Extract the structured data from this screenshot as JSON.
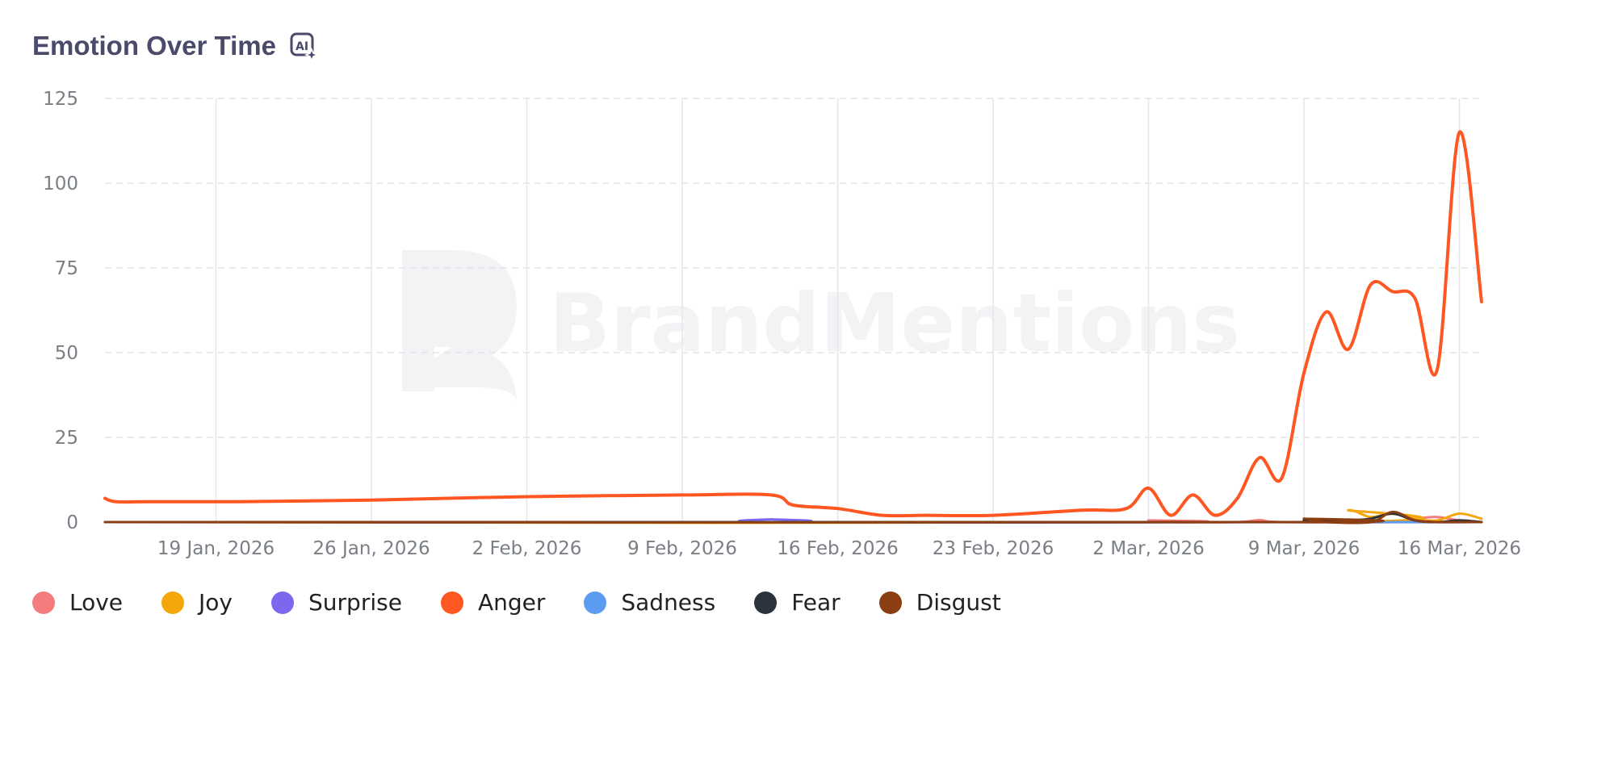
{
  "header": {
    "title": "Emotion Over Time",
    "ai_icon": "ai-sparkle-icon"
  },
  "watermark": {
    "text": "BrandMentions"
  },
  "chart_data": {
    "type": "line",
    "title": "Emotion Over Time",
    "xlabel": "",
    "ylabel": "",
    "ylim": [
      0,
      125
    ],
    "y_ticks": [
      0,
      25,
      50,
      75,
      100,
      125
    ],
    "x_tick_labels": [
      "19 Jan, 2026",
      "26 Jan, 2026",
      "2 Feb, 2026",
      "9 Feb, 2026",
      "16 Feb, 2026",
      "23 Feb, 2026",
      "2 Mar, 2026",
      "9 Mar, 2026",
      "16 Mar, 2026"
    ],
    "x_tick_days": [
      19,
      26,
      33,
      40,
      47,
      54,
      61,
      68,
      75
    ],
    "x_day_range": [
      14,
      76
    ],
    "grid": true,
    "legend_position": "bottom-left",
    "series": [
      {
        "name": "Love",
        "color": "#f47c7c",
        "points": [
          [
            14,
            0
          ],
          [
            60,
            0
          ],
          [
            61,
            0.5
          ],
          [
            62,
            0
          ],
          [
            65,
            0
          ],
          [
            66,
            0.6
          ],
          [
            67,
            0
          ],
          [
            72,
            0
          ],
          [
            73,
            1
          ],
          [
            74,
            1.5
          ],
          [
            75,
            0.5
          ],
          [
            76,
            0
          ]
        ]
      },
      {
        "name": "Joy",
        "color": "#f5a60b",
        "points": [
          [
            14,
            0
          ],
          [
            69,
            0
          ],
          [
            70,
            3.5
          ],
          [
            71,
            1.5
          ],
          [
            72,
            2.5
          ],
          [
            73,
            1
          ],
          [
            74,
            0.5
          ],
          [
            75,
            2.5
          ],
          [
            76,
            1
          ]
        ]
      },
      {
        "name": "Surprise",
        "color": "#7b68ee",
        "points": [
          [
            14,
            0
          ],
          [
            43.5,
            0
          ],
          [
            44,
            0.8
          ],
          [
            44.5,
            0
          ],
          [
            69,
            0
          ],
          [
            69.5,
            0.5
          ],
          [
            70,
            0
          ],
          [
            76,
            0
          ]
        ]
      },
      {
        "name": "Anger",
        "color": "#ff5722",
        "points": [
          [
            14,
            7
          ],
          [
            14.5,
            6
          ],
          [
            16,
            6
          ],
          [
            20,
            6
          ],
          [
            26,
            6.5
          ],
          [
            33,
            7.5
          ],
          [
            40,
            8
          ],
          [
            44,
            8
          ],
          [
            45,
            5
          ],
          [
            47,
            4
          ],
          [
            49,
            2
          ],
          [
            51,
            2
          ],
          [
            54,
            2
          ],
          [
            58,
            3.5
          ],
          [
            60,
            4
          ],
          [
            61,
            10
          ],
          [
            62,
            2
          ],
          [
            63,
            8
          ],
          [
            64,
            2
          ],
          [
            65,
            7
          ],
          [
            66,
            19
          ],
          [
            67,
            13
          ],
          [
            68,
            44
          ],
          [
            69,
            62
          ],
          [
            70,
            51
          ],
          [
            71,
            70
          ],
          [
            72,
            68
          ],
          [
            73,
            66
          ],
          [
            74,
            45
          ],
          [
            75,
            115
          ],
          [
            76,
            65
          ]
        ]
      },
      {
        "name": "Sadness",
        "color": "#5b9bf0",
        "points": [
          [
            14,
            0
          ],
          [
            76,
            0
          ]
        ]
      },
      {
        "name": "Fear",
        "color": "#2b333c",
        "points": [
          [
            14,
            0
          ],
          [
            67,
            0
          ],
          [
            68,
            0.5
          ],
          [
            69,
            0
          ],
          [
            70,
            0.5
          ],
          [
            71,
            1
          ],
          [
            72,
            2.5
          ],
          [
            73,
            0.5
          ],
          [
            74,
            0
          ],
          [
            75,
            0.5
          ],
          [
            76,
            0
          ]
        ]
      },
      {
        "name": "Disgust",
        "color": "#8b3e12",
        "points": [
          [
            14,
            0
          ],
          [
            67.5,
            0
          ],
          [
            68,
            1
          ],
          [
            69,
            0
          ],
          [
            71,
            0
          ],
          [
            72,
            3
          ],
          [
            73,
            0.5
          ],
          [
            74,
            0
          ],
          [
            76,
            0
          ]
        ]
      }
    ]
  }
}
